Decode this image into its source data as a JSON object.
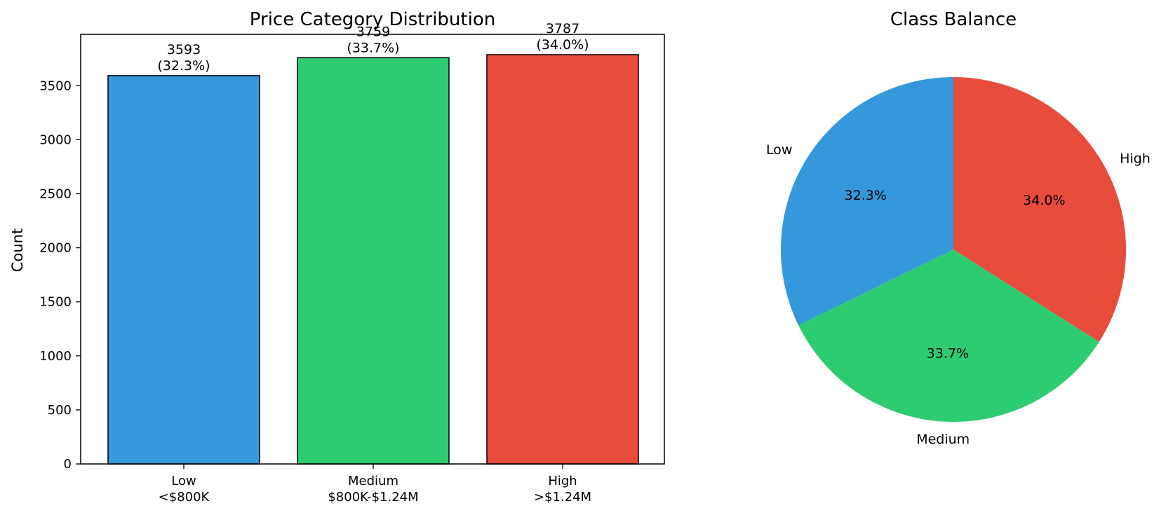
{
  "chart_data": [
    {
      "type": "bar",
      "title": "Price Category Distribution",
      "xlabel": "",
      "ylabel": "Count",
      "categories": [
        {
          "name": "Low",
          "range": "<$800K"
        },
        {
          "name": "Medium",
          "range": "$800K-$1.24M"
        },
        {
          "name": "High",
          "range": ">$1.24M"
        }
      ],
      "values": [
        3593,
        3759,
        3787
      ],
      "value_labels": [
        "3593",
        "3759",
        "3787"
      ],
      "percent_labels": [
        "(32.3%)",
        "(33.7%)",
        "(34.0%)"
      ],
      "colors": [
        "#3498db",
        "#2ecc71",
        "#e74c3c"
      ],
      "ylim": [
        0,
        3975
      ],
      "yticks": [
        0,
        500,
        1000,
        1500,
        2000,
        2500,
        3000,
        3500
      ],
      "grid": false
    },
    {
      "type": "pie",
      "title": "Class Balance",
      "labels": [
        "Low",
        "Medium",
        "High"
      ],
      "values": [
        3593,
        3759,
        3787
      ],
      "percent_labels": [
        "32.3%",
        "33.7%",
        "34.0%"
      ],
      "colors": [
        "#3498db",
        "#2ecc71",
        "#e74c3c"
      ],
      "start_angle_deg": 90,
      "direction": "counterclockwise"
    }
  ]
}
